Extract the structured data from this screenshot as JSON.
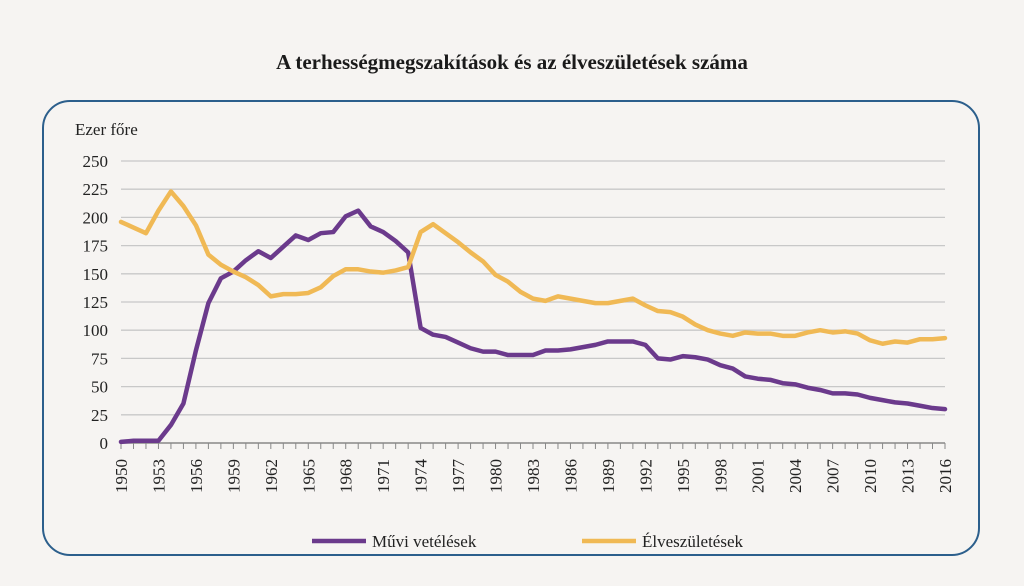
{
  "chart_data": {
    "type": "line",
    "title": "A terhességmegszakítások és az élveszületések száma",
    "ylabel": "Ezer főre",
    "xlabel": "",
    "ylim": [
      0,
      250
    ],
    "yticks": [
      0,
      25,
      50,
      75,
      100,
      125,
      150,
      175,
      200,
      225,
      250
    ],
    "xlim": [
      1950,
      2016
    ],
    "xtick_labels": [
      "1950",
      "1953",
      "1956",
      "1959",
      "1962",
      "1965",
      "1968",
      "1971",
      "1974",
      "1977",
      "1980",
      "1983",
      "1986",
      "1989",
      "1992",
      "1995",
      "1998",
      "2001",
      "2004",
      "2007",
      "2010",
      "2013",
      "2016"
    ],
    "grid": true,
    "legend": "bottom",
    "x_start": 1950,
    "series": [
      {
        "name": "Művi vetélések",
        "color": "#6b3a8c",
        "values": [
          1,
          2,
          2,
          2,
          16,
          35,
          82,
          124,
          146,
          152,
          162,
          170,
          164,
          174,
          184,
          180,
          186,
          187,
          201,
          206,
          192,
          187,
          179,
          169,
          102,
          96,
          94,
          89,
          84,
          81,
          81,
          78,
          78,
          78,
          82,
          82,
          83,
          85,
          87,
          90,
          90,
          90,
          87,
          75,
          74,
          77,
          76,
          74,
          69,
          66,
          59,
          57,
          56,
          53,
          52,
          49,
          47,
          44,
          44,
          43,
          40,
          38,
          36,
          35,
          33,
          31,
          30
        ]
      },
      {
        "name": "Élveszületések",
        "color": "#f0b955",
        "values": [
          196,
          191,
          186,
          206,
          223,
          210,
          193,
          167,
          158,
          152,
          147,
          140,
          130,
          132,
          132,
          133,
          138,
          148,
          154,
          154,
          152,
          151,
          153,
          156,
          187,
          194,
          186,
          178,
          169,
          161,
          149,
          143,
          134,
          128,
          126,
          130,
          128,
          126,
          124,
          124,
          126,
          128,
          122,
          117,
          116,
          112,
          105,
          100,
          97,
          95,
          98,
          97,
          97,
          95,
          95,
          98,
          100,
          98,
          99,
          97,
          91,
          88,
          90,
          89,
          92,
          92,
          93
        ]
      }
    ]
  }
}
